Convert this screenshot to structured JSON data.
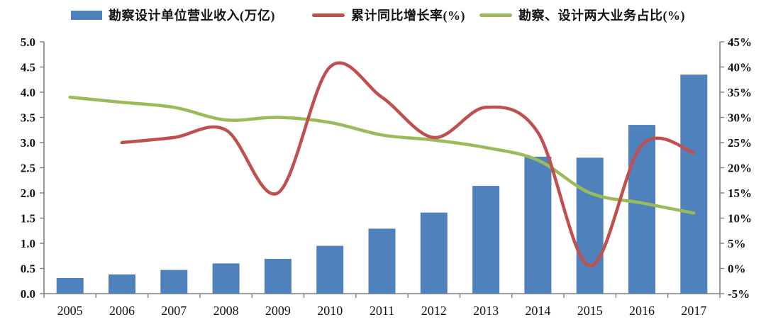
{
  "chart_data": {
    "type": "bar",
    "combo": "bar + smooth lines (dual axis)",
    "title": "",
    "xlabel": "",
    "ylabel_left": "",
    "ylabel_right": "",
    "grid": false,
    "legend_position": "top",
    "categories": [
      "2005",
      "2006",
      "2007",
      "2008",
      "2009",
      "2010",
      "2011",
      "2012",
      "2013",
      "2014",
      "2015",
      "2016",
      "2017"
    ],
    "series": [
      {
        "name": "勘察设计单位营业收入(万亿)",
        "type": "bar",
        "axis": "left",
        "color": "#4f81bd",
        "values": [
          0.31,
          0.38,
          0.47,
          0.6,
          0.69,
          0.95,
          1.29,
          1.61,
          2.14,
          2.72,
          2.7,
          3.35,
          4.35
        ]
      },
      {
        "name": "累计同比增长率(%)",
        "type": "line",
        "axis": "right",
        "color": "#c0504d",
        "smooth": true,
        "values": [
          null,
          25,
          26,
          27.5,
          15,
          40,
          34,
          26,
          32,
          27,
          0.5,
          24.5,
          23
        ]
      },
      {
        "name": "勘察、设计两大业务占比(%)",
        "type": "line",
        "axis": "right",
        "color": "#9bbb59",
        "smooth": true,
        "values": [
          34,
          33,
          32,
          29.5,
          30,
          29,
          26.5,
          25.5,
          24,
          21.5,
          15,
          13,
          11
        ]
      }
    ],
    "left_axis": {
      "min": 0,
      "max": 5,
      "step": 0.5,
      "tick_labels": [
        "0.0",
        "0.5",
        "1.0",
        "1.5",
        "2.0",
        "2.5",
        "3.0",
        "3.5",
        "4.0",
        "4.5",
        "5.0"
      ]
    },
    "right_axis": {
      "min": -5,
      "max": 45,
      "step": 5,
      "tick_labels": [
        "-5%",
        "0%",
        "5%",
        "10%",
        "15%",
        "20%",
        "25%",
        "30%",
        "35%",
        "40%",
        "45%"
      ]
    },
    "axis_color": "#7f7f7f",
    "text_color": "#141414"
  }
}
